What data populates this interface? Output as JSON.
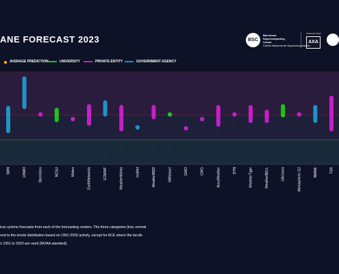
{
  "header": {
    "title": "ANE FORECAST 2023",
    "bsc_logo": {
      "mark": "BSC",
      "lines": [
        "Barcelona",
        "Supercomputing",
        "Center",
        "Centro Nacional de Supercomputación"
      ]
    },
    "axa_logo": {
      "mark": "AXA",
      "small": "research fund"
    },
    "csu_logo": {
      "icon": "ram-head-icon"
    }
  },
  "legend": {
    "items": [
      {
        "label": "AVERAGE PREDICTION",
        "color": "#f5c400",
        "shape": "dot"
      },
      {
        "label": "UNIVERSITY",
        "color": "#1fc31a",
        "shape": "line"
      },
      {
        "label": "PRIVATE ENTITY",
        "color": "#c51fc7",
        "shape": "line"
      },
      {
        "label": "GOVERNMENT AGENCY",
        "color": "#1f93c6",
        "shape": "line"
      }
    ]
  },
  "chart_data": {
    "type": "range",
    "bands": [
      {
        "name": "above normal",
        "color": "#2a1c3c"
      },
      {
        "name": "normal",
        "color": "#1d2038"
      },
      {
        "name": "below normal",
        "color": "#18293a"
      }
    ],
    "categories": [
      "SMN",
      "UKMO",
      "StormGeo",
      "NCSU",
      "Meteo",
      "EarthNetworks",
      "ECMWF",
      "WeatherWorks",
      "InsMet",
      "WeatherBDD",
      "UMissouri",
      "GWO",
      "CWG",
      "AccuWeather",
      "DTN",
      "WeatherTiger",
      "WeatherBELL",
      "UArizona",
      "Atmospheric G2",
      "NMME",
      "TSR"
    ],
    "ranges": [
      {
        "entity": "government",
        "low": 0.39,
        "high": 0.64,
        "marker": false
      },
      {
        "entity": "government",
        "low": 0.07,
        "high": 0.38,
        "marker": false
      },
      {
        "entity": "private",
        "low": 0.46,
        "high": 0.46,
        "marker": true
      },
      {
        "entity": "university",
        "low": 0.41,
        "high": 0.52,
        "marker": false
      },
      {
        "entity": "private",
        "low": 0.51,
        "high": 0.51,
        "marker": true
      },
      {
        "entity": "private",
        "low": 0.37,
        "high": 0.56,
        "marker": false
      },
      {
        "entity": "government",
        "low": 0.33,
        "high": 0.46,
        "marker": false
      },
      {
        "entity": "private",
        "low": 0.38,
        "high": 0.62,
        "marker": false
      },
      {
        "entity": "government",
        "low": 0.6,
        "high": 0.6,
        "marker": true
      },
      {
        "entity": "private",
        "low": 0.38,
        "high": 0.49,
        "marker": false
      },
      {
        "entity": "university",
        "low": 0.46,
        "high": 0.46,
        "marker": true
      },
      {
        "entity": "private",
        "low": 0.61,
        "high": 0.61,
        "marker": true
      },
      {
        "entity": "private",
        "low": 0.51,
        "high": 0.51,
        "marker": true
      },
      {
        "entity": "private",
        "low": 0.38,
        "high": 0.57,
        "marker": false
      },
      {
        "entity": "private",
        "low": 0.46,
        "high": 0.46,
        "marker": true
      },
      {
        "entity": "private",
        "low": 0.38,
        "high": 0.53,
        "marker": false
      },
      {
        "entity": "private",
        "low": 0.43,
        "high": 0.53,
        "marker": false
      },
      {
        "entity": "university",
        "low": 0.37,
        "high": 0.47,
        "marker": false
      },
      {
        "entity": "private",
        "low": 0.46,
        "high": 0.46,
        "marker": true
      },
      {
        "entity": "government",
        "low": 0.38,
        "high": 0.53,
        "marker": false
      },
      {
        "entity": "private",
        "low": 0.28,
        "high": 0.62,
        "marker": false
      }
    ],
    "colors": {
      "university": "#1fc31a",
      "private": "#c51fc7",
      "government": "#1f93c6"
    },
    "ylabel": "",
    "grid": true,
    "legend_position": "top"
  },
  "note": {
    "lines": [
      "ical cyclone forecasts from each of the forecasting centers. The three categories (low, normal",
      "ond to the tercile distribution based on 1991-2020 activity, except for ACE where the tercile",
      "n 1951 to 2020 are used (NOAA standard)."
    ]
  }
}
